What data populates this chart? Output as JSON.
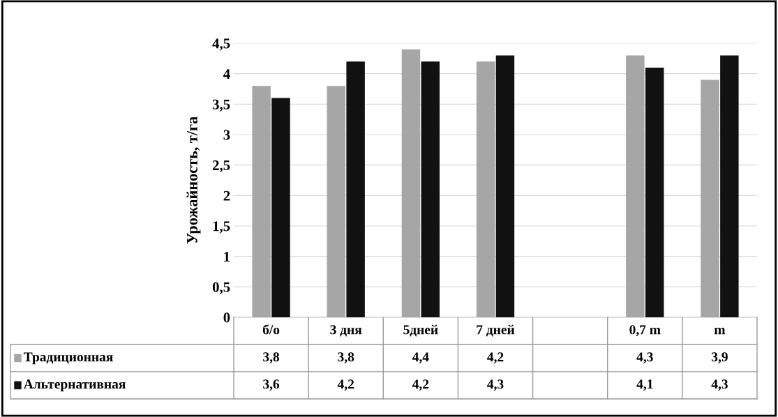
{
  "chart_data": {
    "type": "bar",
    "ylabel": "Урожайность, т/га",
    "categories": [
      "б/о",
      "3 дня",
      "5дней",
      "7 дней",
      null,
      "0,7 m",
      "m"
    ],
    "series": [
      {
        "name": "Традиционная",
        "color": "#a6a6a6",
        "values": [
          3.8,
          3.8,
          4.4,
          4.2,
          null,
          4.3,
          3.9
        ],
        "value_labels": [
          "3,8",
          "3,8",
          "4,4",
          "4,2",
          null,
          "4,3",
          "3,9"
        ]
      },
      {
        "name": "Альтернативная",
        "color": "#111111",
        "values": [
          3.6,
          4.2,
          4.2,
          4.3,
          null,
          4.1,
          4.3
        ],
        "value_labels": [
          "3,6",
          "4,2",
          "4,2",
          "4,3",
          null,
          "4,1",
          "4,3"
        ]
      }
    ],
    "ylim": [
      0,
      4.5
    ],
    "yticks": [
      0,
      {
        "value": 0.5,
        "label": "0,5"
      },
      1,
      {
        "value": 1.5,
        "label": "1,5"
      },
      2,
      {
        "value": 2.5,
        "label": "2,5"
      },
      3,
      {
        "value": 3.5,
        "label": "3,5"
      },
      4,
      {
        "value": 4.5,
        "label": "4,5"
      }
    ],
    "grid": "y",
    "legend": "bottom"
  }
}
